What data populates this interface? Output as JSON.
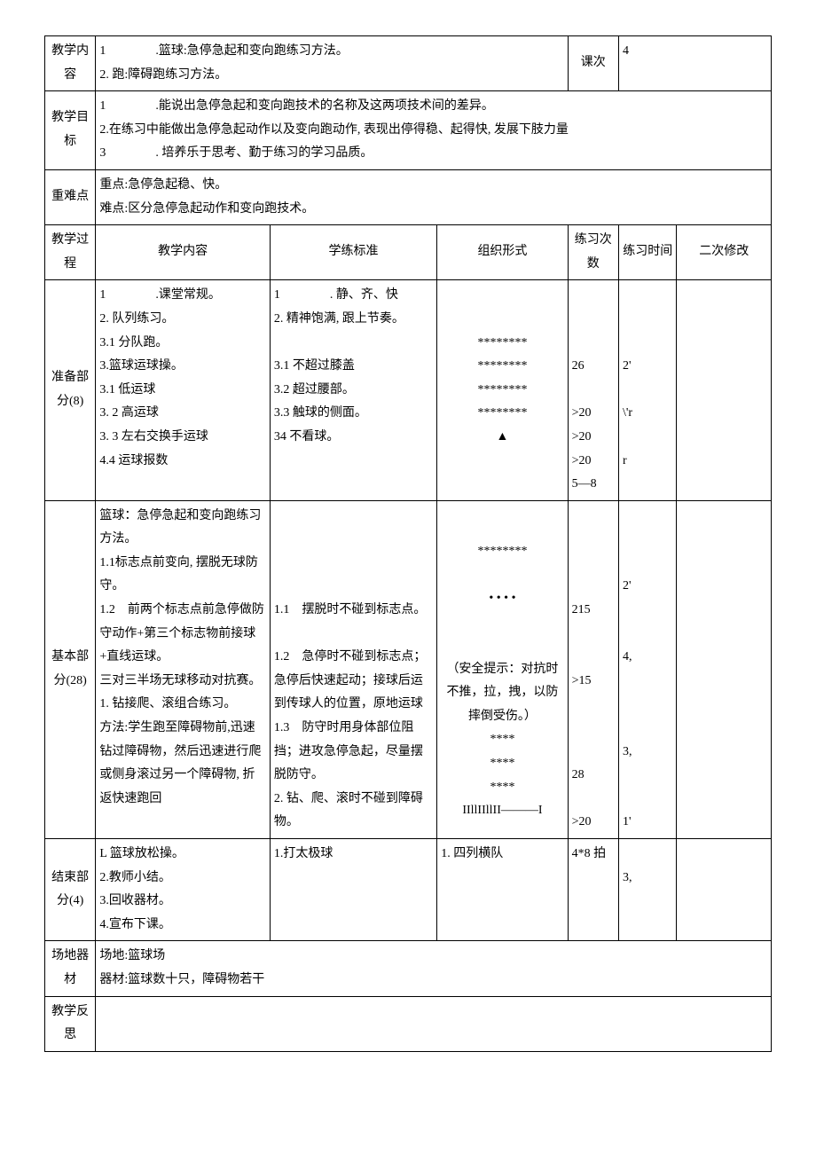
{
  "colWidths": [
    "7%",
    "24%",
    "23%",
    "18%",
    "7%",
    "8%",
    "13%"
  ],
  "row1": {
    "label": "教学内容",
    "content": "1　　　　.篮球:急停急起和变向跑练习方法。\n2. 跑:障碍跑练习方法。",
    "lessonLabel": "课次",
    "lessonNum": "4"
  },
  "row2": {
    "label": "教学目标",
    "content": "1　　　　.能说出急停急起和变向跑技术的名称及这两项技术间的差异。\n2.在练习中能做出急停急起动作以及变向跑动作, 表现出停得稳、起得快, 发展下肢力量\n3　　　　. 培养乐于思考、勤于练习的学习品质。"
  },
  "row3": {
    "label": "重难点",
    "content": "重点:急停急起稳、快。\n难点:区分急停急起动作和变向跑技术。"
  },
  "header": {
    "c1": "教学过程",
    "c2": "教学内容",
    "c3": "学练标准",
    "c4": "组织形式",
    "c5": "练习次数",
    "c6": "练习时间",
    "c7": "二次修改"
  },
  "prep": {
    "label": "准备部分(8)",
    "content": "1　　　　.课堂常规。\n2. 队列练习。\n3.1 分队跑。\n3.篮球运球操。\n3.1 低运球\n3. 2 高运球\n3. 3 左右交换手运球\n4.4 运球报数",
    "standard": "1　　　　. 静、齐、快\n2. 精神饱满, 跟上节奏。\n\n3.1 不超过膝盖\n3.2 超过腰部。\n3.3 触球的侧面。\n34 不看球。",
    "form": "********\n********\n********\n********\n▲",
    "count": "\n\n\n26\n\n>20\n>20\n>20\n5—8",
    "time": "\n\n\n2'\n\n\\'r\n\nr"
  },
  "basic": {
    "label": "基本部分(28)",
    "content": "篮球：急停急起和变向跑练习方法。\n1.1标志点前变向, 摆脱无球防守。\n1.2　前两个标志点前急停做防守动作+第三个标志物前接球+直线运球。\n三对三半场无球移动对抗赛。\n1. 钻接爬、滚组合练习。\n方法:学生跑至障碍物前,迅速钻过障碍物，然后迅速进行爬或侧身滚过另一个障碍物, 折返快速跑回",
    "standard": "\n\n\n\n1.1　摆脱时不碰到标志点。\n\n1.2　急停时不碰到标志点；急停后快速起动；接球后运到传球人的位置，原地运球\n1.3　防守时用身体部位阻挡；进攻急停急起，尽量摆脱防守。\n2. 钻、爬、滚时不碰到障碍物。",
    "form": "\n********\n\n• • • •\n\n\n（安全提示：对抗时不推，拉，拽，以防摔倒受伤。）\n****\n****\n****\nIIllIIllII———I",
    "count": "\n\n\n\n215\n\n\n>15\n\n\n\n28\n\n>20",
    "time": "\n\n\n2'\n\n\n4,\n\n\n\n3,\n\n\n1'"
  },
  "end": {
    "label": "结束部分(4)",
    "content": "L 篮球放松操。\n2.教师小结。\n3.回收器材。\n4.宣布下课。",
    "standard": "1.打太极球",
    "form": "1. 四列横队",
    "count": "4*8 拍",
    "time": "\n3,"
  },
  "venue": {
    "label": "场地器材",
    "content": "场地:篮球场\n器材:篮球数十只，障碍物若干"
  },
  "reflect": {
    "label": "教学反思",
    "content": ""
  }
}
